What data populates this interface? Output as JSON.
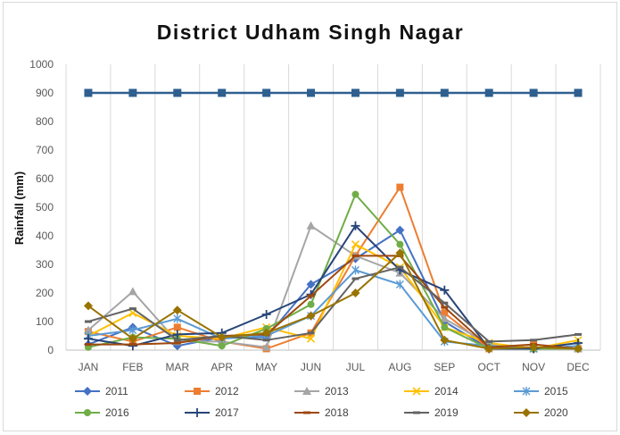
{
  "chart_data": {
    "type": "line",
    "title": "District Udham Singh Nagar",
    "xlabel": "",
    "ylabel": "Rainfall (mm)",
    "ylim": [
      0,
      1000
    ],
    "yticks": [
      0,
      100,
      200,
      300,
      400,
      500,
      600,
      700,
      800,
      900,
      1000
    ],
    "grid": "vertical",
    "legend": "bottom",
    "categories": [
      "JAN",
      "FEB",
      "MAR",
      "APR",
      "MAY",
      "JUN",
      "JUL",
      "AUG",
      "SEP",
      "OCT",
      "NOV",
      "DEC"
    ],
    "series": [
      {
        "name": "",
        "color": "#2e5f8f",
        "marker": "square",
        "values": [
          900,
          900,
          900,
          900,
          900,
          900,
          900,
          900,
          900,
          900,
          900,
          900
        ]
      },
      {
        "name": "2011",
        "color": "#4472c4",
        "marker": "diamond",
        "values": [
          20,
          80,
          15,
          45,
          45,
          230,
          320,
          420,
          100,
          5,
          5,
          5
        ]
      },
      {
        "name": "2012",
        "color": "#ed7d31",
        "marker": "square",
        "values": [
          65,
          30,
          80,
          30,
          5,
          60,
          330,
          570,
          130,
          5,
          20,
          5
        ]
      },
      {
        "name": "2013",
        "color": "#a5a5a5",
        "marker": "triangle",
        "values": [
          70,
          205,
          30,
          30,
          10,
          435,
          330,
          270,
          110,
          20,
          5,
          5
        ]
      },
      {
        "name": "2014",
        "color": "#ffc000",
        "marker": "x",
        "values": [
          50,
          130,
          50,
          40,
          80,
          40,
          370,
          290,
          80,
          25,
          5,
          35
        ]
      },
      {
        "name": "2015",
        "color": "#5b9bd5",
        "marker": "asterisk",
        "values": [
          50,
          70,
          110,
          40,
          50,
          120,
          280,
          230,
          30,
          15,
          5,
          15
        ]
      },
      {
        "name": "2016",
        "color": "#70ad47",
        "marker": "circle",
        "values": [
          10,
          45,
          40,
          15,
          75,
          160,
          545,
          370,
          80,
          5,
          5,
          5
        ]
      },
      {
        "name": "2017",
        "color": "#264478",
        "marker": "plus",
        "values": [
          40,
          15,
          55,
          60,
          125,
          195,
          435,
          280,
          210,
          5,
          5,
          25
        ]
      },
      {
        "name": "2018",
        "color": "#9e480e",
        "marker": "dash",
        "values": [
          20,
          20,
          25,
          50,
          55,
          190,
          330,
          330,
          150,
          10,
          20,
          5
        ]
      },
      {
        "name": "2019",
        "color": "#636363",
        "marker": "dash",
        "values": [
          100,
          145,
          35,
          50,
          35,
          60,
          250,
          290,
          165,
          30,
          35,
          55
        ]
      },
      {
        "name": "2020",
        "color": "#997300",
        "marker": "diamond",
        "values": [
          155,
          40,
          140,
          45,
          60,
          120,
          200,
          340,
          35,
          5,
          10,
          5
        ]
      }
    ]
  }
}
